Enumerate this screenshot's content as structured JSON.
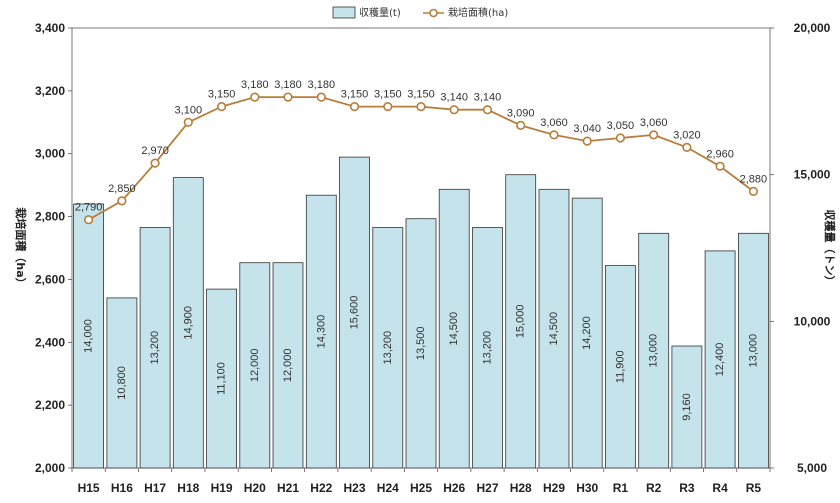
{
  "chart_data": {
    "type": "bar",
    "categories": [
      "H15",
      "H16",
      "H17",
      "H18",
      "H19",
      "H20",
      "H21",
      "H22",
      "H23",
      "H24",
      "H25",
      "H26",
      "H27",
      "H28",
      "H29",
      "H30",
      "R1",
      "R2",
      "R3",
      "R4",
      "R5"
    ],
    "series": [
      {
        "name": "収穫量(t)",
        "type": "bar",
        "axis": "right",
        "color": "#c5e3eb",
        "stroke": "#333333",
        "values": [
          14000,
          10800,
          13200,
          14900,
          11100,
          12000,
          12000,
          14300,
          15600,
          13200,
          13500,
          14500,
          13200,
          15000,
          14500,
          14200,
          11900,
          13000,
          9160,
          12400,
          13000
        ],
        "labels": [
          "14,000",
          "10,800",
          "13,200",
          "14,900",
          "11,100",
          "12,000",
          "12,000",
          "14,300",
          "15,600",
          "13,200",
          "13,500",
          "14,500",
          "13,200",
          "15,000",
          "14,500",
          "14,200",
          "11,900",
          "13,000",
          "9,160",
          "12,400",
          "13,000"
        ]
      },
      {
        "name": "栽培面積(ha)",
        "type": "line",
        "axis": "left",
        "color": "#b87d3a",
        "values": [
          2790,
          2850,
          2970,
          3100,
          3150,
          3180,
          3180,
          3180,
          3150,
          3150,
          3150,
          3140,
          3140,
          3090,
          3060,
          3040,
          3050,
          3060,
          3020,
          2960,
          2880
        ],
        "labels": [
          "2,790",
          "2,850",
          "2,970",
          "3,100",
          "3,150",
          "3,180",
          "3,180",
          "3,180",
          "3,150",
          "3,150",
          "3,150",
          "3,140",
          "3,140",
          "3,090",
          "3,060",
          "3,040",
          "3,050",
          "3,060",
          "3,020",
          "2,960",
          "2,880"
        ]
      }
    ],
    "y_left": {
      "label": "栽培面積（ha）",
      "ylim": [
        2000,
        3400
      ],
      "ticks": [
        2000,
        2200,
        2400,
        2600,
        2800,
        3000,
        3200,
        3400
      ],
      "tick_labels": [
        "2,000",
        "2,200",
        "2,400",
        "2,600",
        "2,800",
        "3,000",
        "3,200",
        "3,400"
      ]
    },
    "y_right": {
      "label": "収穫量（トン）",
      "ylim": [
        5000,
        20000
      ],
      "ticks": [
        5000,
        10000,
        15000,
        20000
      ],
      "tick_labels": [
        "5,000",
        "10,000",
        "15,000",
        "20,000"
      ]
    },
    "grid": false,
    "legend_position": "top-center"
  }
}
